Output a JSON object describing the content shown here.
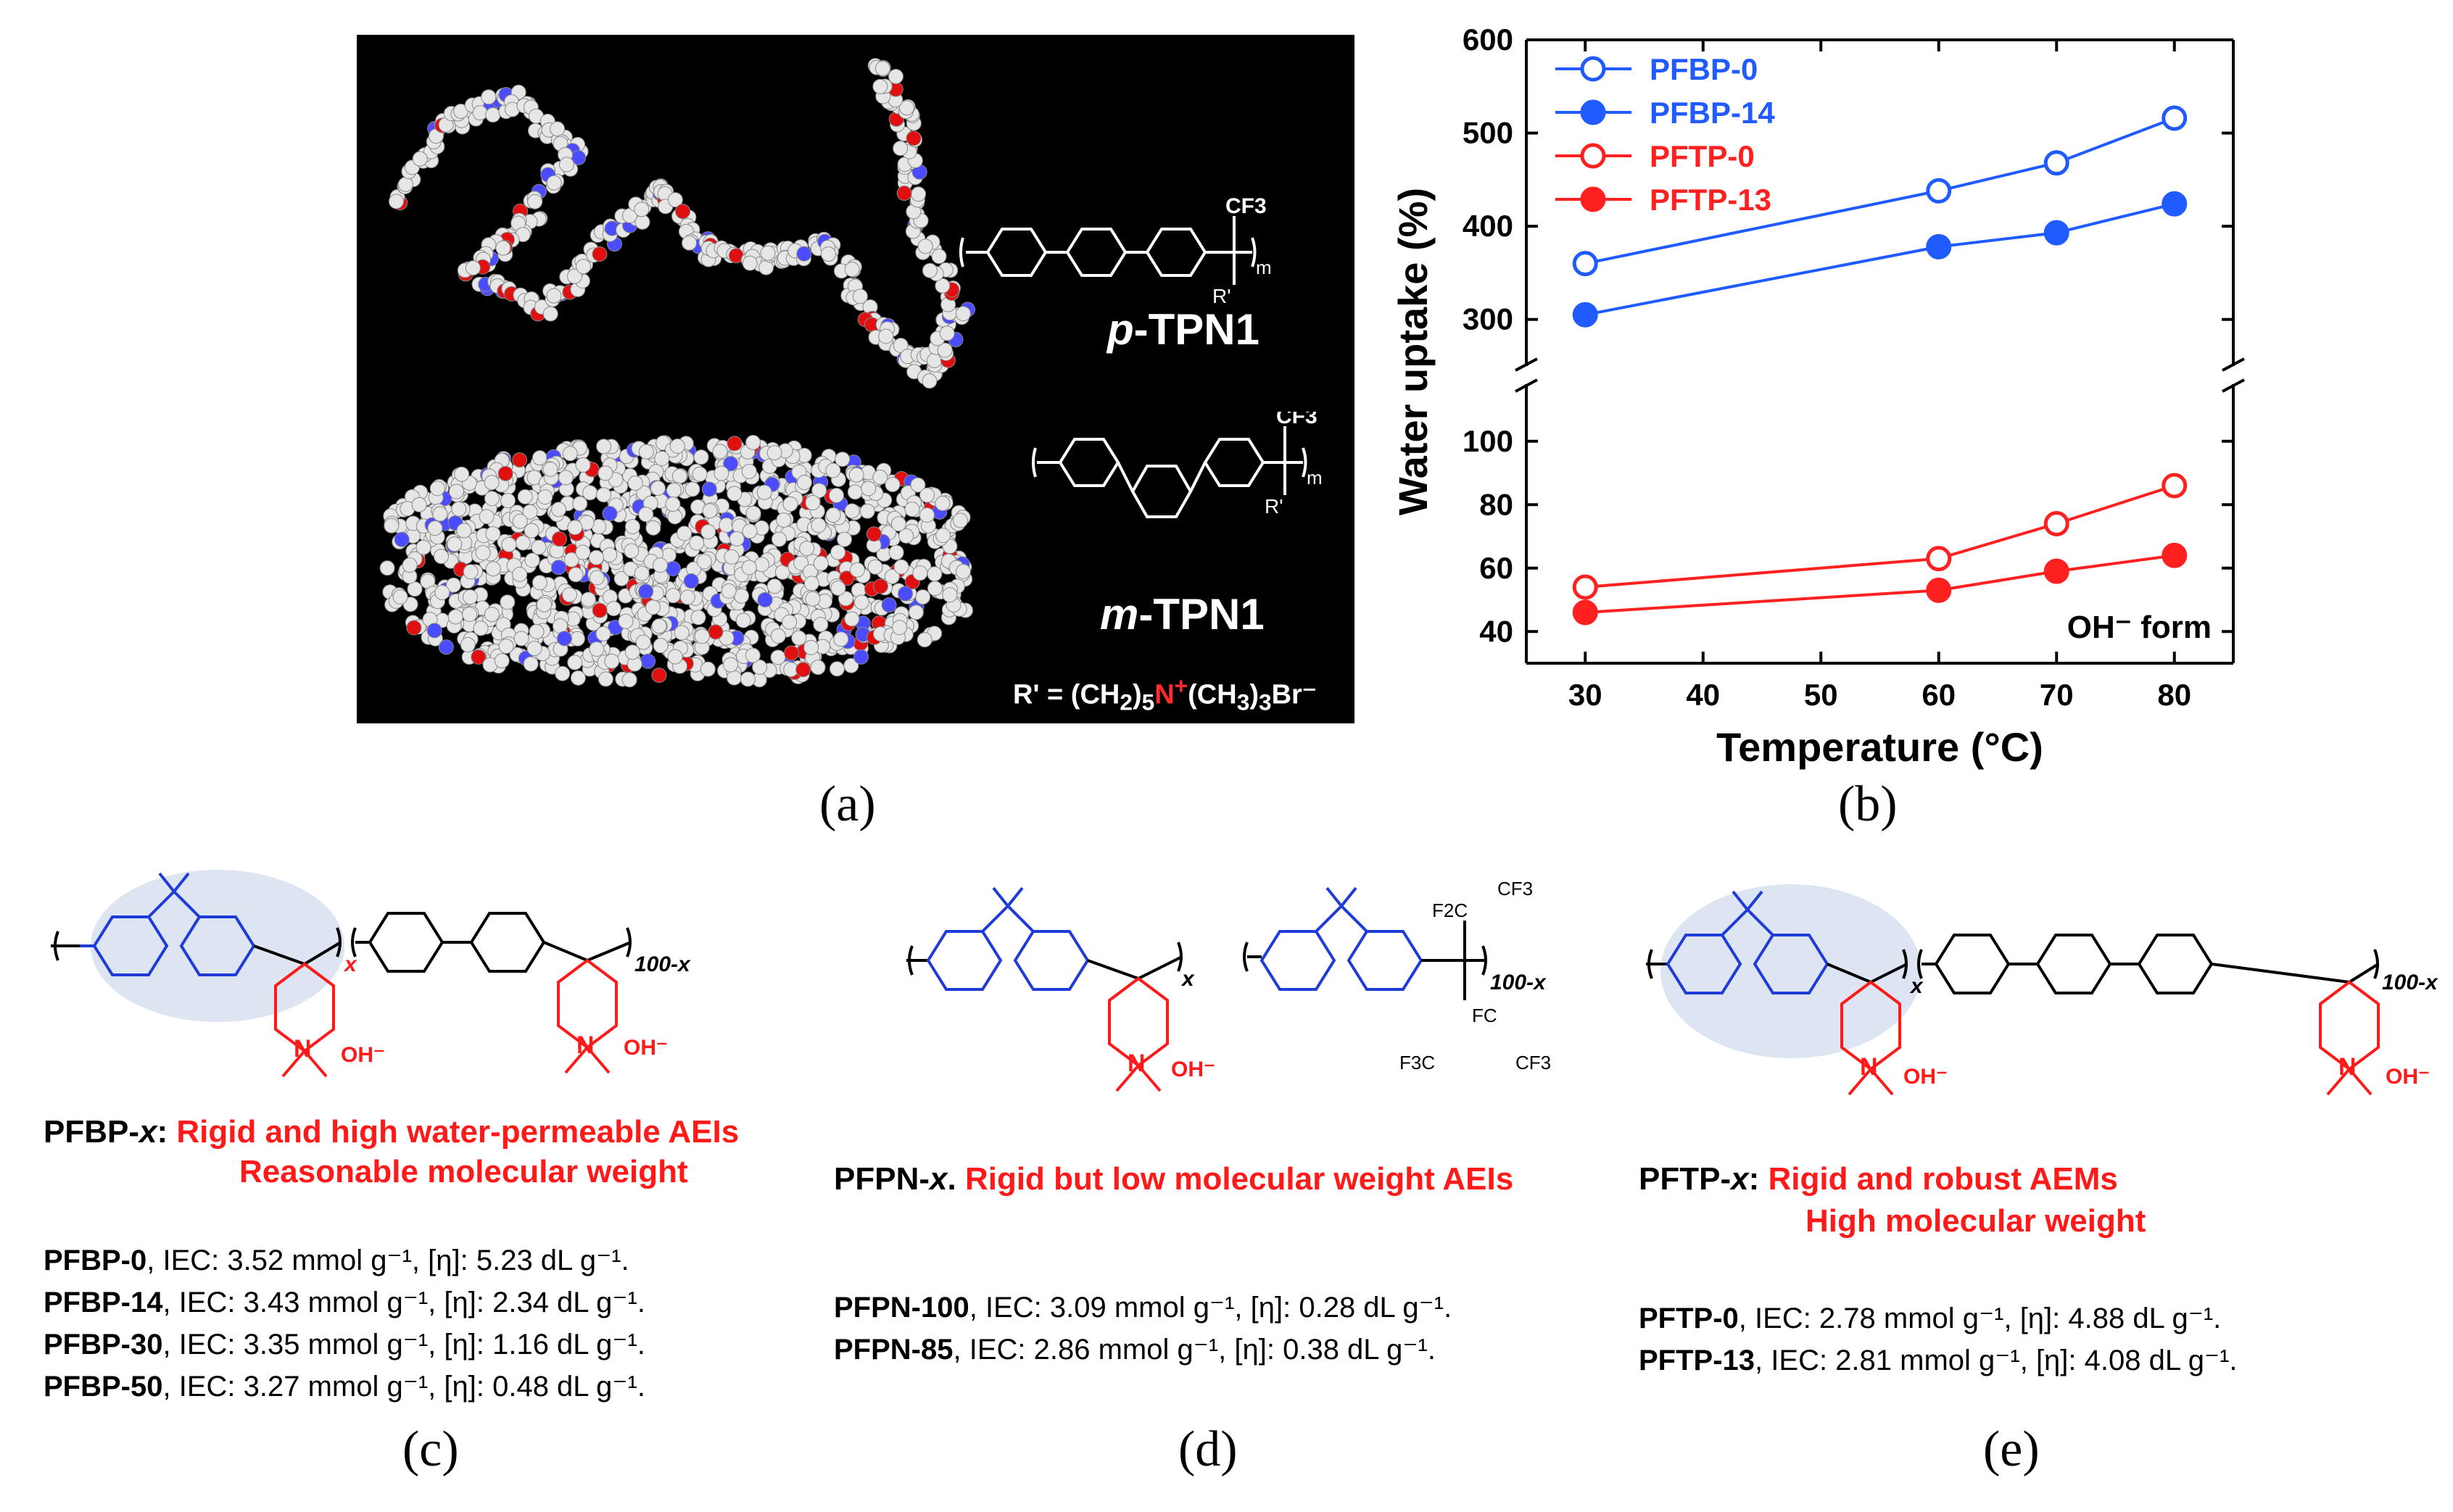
{
  "panel_labels": {
    "a": "(a)",
    "b": "(b)",
    "c": "(c)",
    "d": "(d)",
    "e": "(e)"
  },
  "panel_a": {
    "p_label_prefix": "p",
    "p_label_rest": "-TPN1",
    "m_label_prefix": "m",
    "m_label_rest": "-TPN1",
    "rprime_pre": "R' = (CH",
    "rprime_sub1": "2",
    "rprime_mid": ")",
    "rprime_sub2": "5",
    "rprime_n": "N",
    "rprime_plus": "+",
    "rprime_post": "(CH",
    "rprime_sub3": "3",
    "rprime_post2": ")",
    "rprime_sub4": "3",
    "rprime_br": "Br⁻",
    "cf3": "CF3",
    "r_prime_short": "R'",
    "m_sub": "m"
  },
  "chart_data": {
    "type": "line",
    "xlabel": "Temperature (°C)",
    "ylabel": "Water uptake (%)",
    "x_ticks": [
      30,
      40,
      50,
      60,
      70,
      80
    ],
    "y_ticks_upper": [
      300,
      400,
      500,
      600
    ],
    "y_ticks_lower": [
      40,
      60,
      80,
      100
    ],
    "xlim": [
      25,
      85
    ],
    "ylim_upper": [
      250,
      600
    ],
    "ylim_lower": [
      30,
      118
    ],
    "axis_break": true,
    "legend_position": "top-left",
    "annotation": "OH⁻ form",
    "colors": {
      "blue": "#1f5bff",
      "red": "#ff2020"
    },
    "series": [
      {
        "name": "PFBP-0",
        "color": "#1f5bff",
        "filled": false,
        "x": [
          30,
          60,
          70,
          80
        ],
        "y": [
          360,
          438,
          468,
          516
        ]
      },
      {
        "name": "PFBP-14",
        "color": "#1f5bff",
        "filled": true,
        "x": [
          30,
          60,
          70,
          80
        ],
        "y": [
          305,
          378,
          393,
          424
        ]
      },
      {
        "name": "PFTP-0",
        "color": "#ff2020",
        "filled": false,
        "x": [
          30,
          60,
          70,
          80
        ],
        "y": [
          54,
          63,
          74,
          86
        ]
      },
      {
        "name": "PFTP-13",
        "color": "#ff2020",
        "filled": true,
        "x": [
          30,
          60,
          70,
          80
        ],
        "y": [
          46,
          53,
          59,
          64
        ]
      }
    ]
  },
  "panel_c": {
    "title_name": "PFBP-",
    "title_x": "x",
    "title_colon": ":",
    "title_red1": "Rigid and high water-permeable AEIs",
    "title_red2": "Reasonable molecular weight",
    "x_sub": "x",
    "n_sub": "100-x",
    "oh": "OH⁻",
    "rows": [
      {
        "name": "PFBP-0",
        "text": ",   IEC: 3.52 mmol g⁻¹, [η]: 5.23 dL g⁻¹."
      },
      {
        "name": "PFBP-14",
        "text": ", IEC: 3.43 mmol g⁻¹, [η]: 2.34 dL g⁻¹."
      },
      {
        "name": "PFBP-30",
        "text": ", IEC: 3.35 mmol g⁻¹, [η]: 1.16 dL g⁻¹."
      },
      {
        "name": "PFBP-50",
        "text": ", IEC: 3.27 mmol g⁻¹, [η]: 0.48 dL g⁻¹."
      }
    ]
  },
  "panel_d": {
    "title_name": "PFPN-",
    "title_x": "x",
    "title_dot": ".",
    "title_red": "Rigid but low molecular weight AEIs",
    "x_sub": "x",
    "n_sub": "100-x",
    "oh": "OH⁻",
    "f2c": "F2C",
    "cf3": "CF3",
    "fc": "FC",
    "f3c": "F3C",
    "rows": [
      {
        "name": "PFPN-100",
        "text": ", IEC: 3.09 mmol g⁻¹, [η]: 0.28 dL g⁻¹."
      },
      {
        "name": "PFPN-85",
        "text": ",    IEC: 2.86 mmol g⁻¹, [η]: 0.38 dL g⁻¹."
      }
    ]
  },
  "panel_e": {
    "title_name": "PFTP-",
    "title_x": "x",
    "title_colon": ":",
    "title_red1": "Rigid and robust AEMs",
    "title_red2": "High molecular weight",
    "x_sub": "x",
    "n_sub": "100-x",
    "oh": "OH⁻",
    "rows": [
      {
        "name": "PFTP-0",
        "text": ",     IEC: 2.78 mmol g⁻¹, [η]: 4.88 dL g⁻¹."
      },
      {
        "name": "PFTP-13",
        "text": ", IEC: 2.81 mmol g⁻¹, [η]: 4.08 dL g⁻¹."
      }
    ]
  }
}
